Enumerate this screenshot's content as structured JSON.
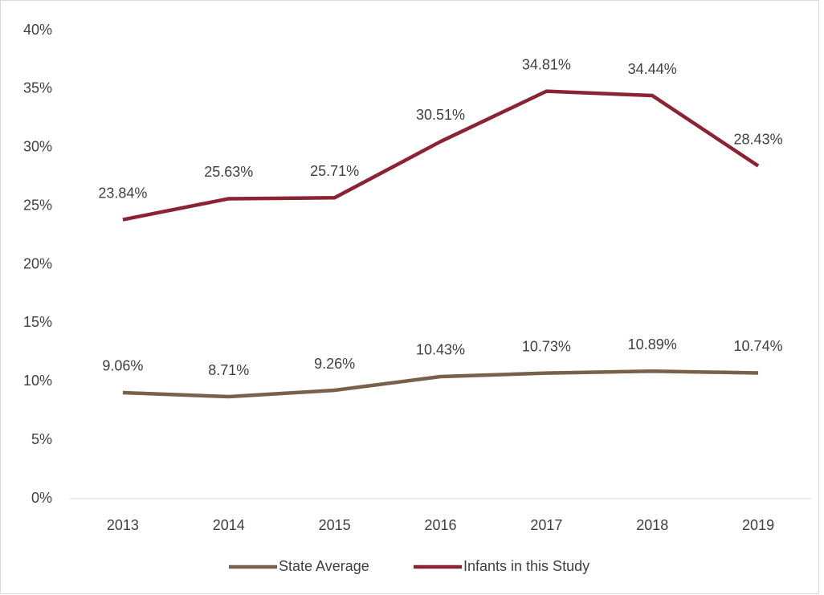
{
  "chart_data": {
    "type": "line",
    "categories": [
      "2013",
      "2014",
      "2015",
      "2016",
      "2017",
      "2018",
      "2019"
    ],
    "series": [
      {
        "name": "State Average",
        "color": "#77614a",
        "values": [
          9.06,
          8.71,
          9.26,
          10.43,
          10.73,
          10.89,
          10.74
        ],
        "value_labels": [
          "9.06%",
          "8.71%",
          "9.26%",
          "10.43%",
          "10.73%",
          "10.89%",
          "10.74%"
        ]
      },
      {
        "name": "Infants in this Study",
        "color": "#8c2333",
        "values": [
          23.84,
          25.63,
          25.71,
          30.51,
          34.81,
          34.44,
          28.43
        ],
        "value_labels": [
          "23.84%",
          "25.63%",
          "25.71%",
          "30.51%",
          "34.81%",
          "34.44%",
          "28.43%"
        ]
      }
    ],
    "ylim": [
      0,
      40
    ],
    "yticks": [
      {
        "value": 0,
        "label": "0%"
      },
      {
        "value": 5,
        "label": "5%"
      },
      {
        "value": 10,
        "label": "10%"
      },
      {
        "value": 15,
        "label": "15%"
      },
      {
        "value": 20,
        "label": "20%"
      },
      {
        "value": 25,
        "label": "25%"
      },
      {
        "value": 30,
        "label": "30%"
      },
      {
        "value": 35,
        "label": "35%"
      },
      {
        "value": 40,
        "label": "40%"
      }
    ],
    "grid": false,
    "legend": "bottom"
  }
}
